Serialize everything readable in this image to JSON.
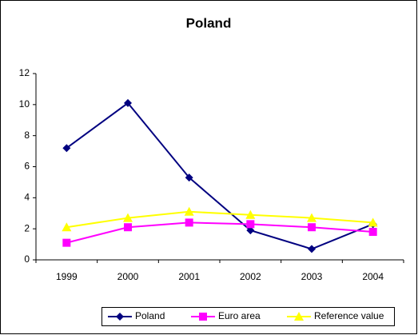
{
  "chart_data": {
    "type": "line",
    "title": "Poland",
    "categories": [
      "1999",
      "2000",
      "2001",
      "2002",
      "2003",
      "2004"
    ],
    "series": [
      {
        "name": "Poland",
        "color": "#000080",
        "marker": "diamond",
        "values": [
          7.2,
          10.1,
          5.3,
          1.9,
          0.7,
          2.3
        ]
      },
      {
        "name": "Euro area",
        "color": "#ff00ff",
        "marker": "square",
        "values": [
          1.1,
          2.1,
          2.4,
          2.3,
          2.1,
          1.8
        ]
      },
      {
        "name": "Reference value",
        "color": "#ffff00",
        "marker": "triangle",
        "values": [
          2.1,
          2.7,
          3.1,
          2.9,
          2.7,
          2.4
        ]
      }
    ],
    "ylim": [
      0,
      12
    ],
    "yticks": [
      0,
      2,
      4,
      6,
      8,
      10,
      12
    ],
    "grid": false,
    "legend": "bottom"
  }
}
